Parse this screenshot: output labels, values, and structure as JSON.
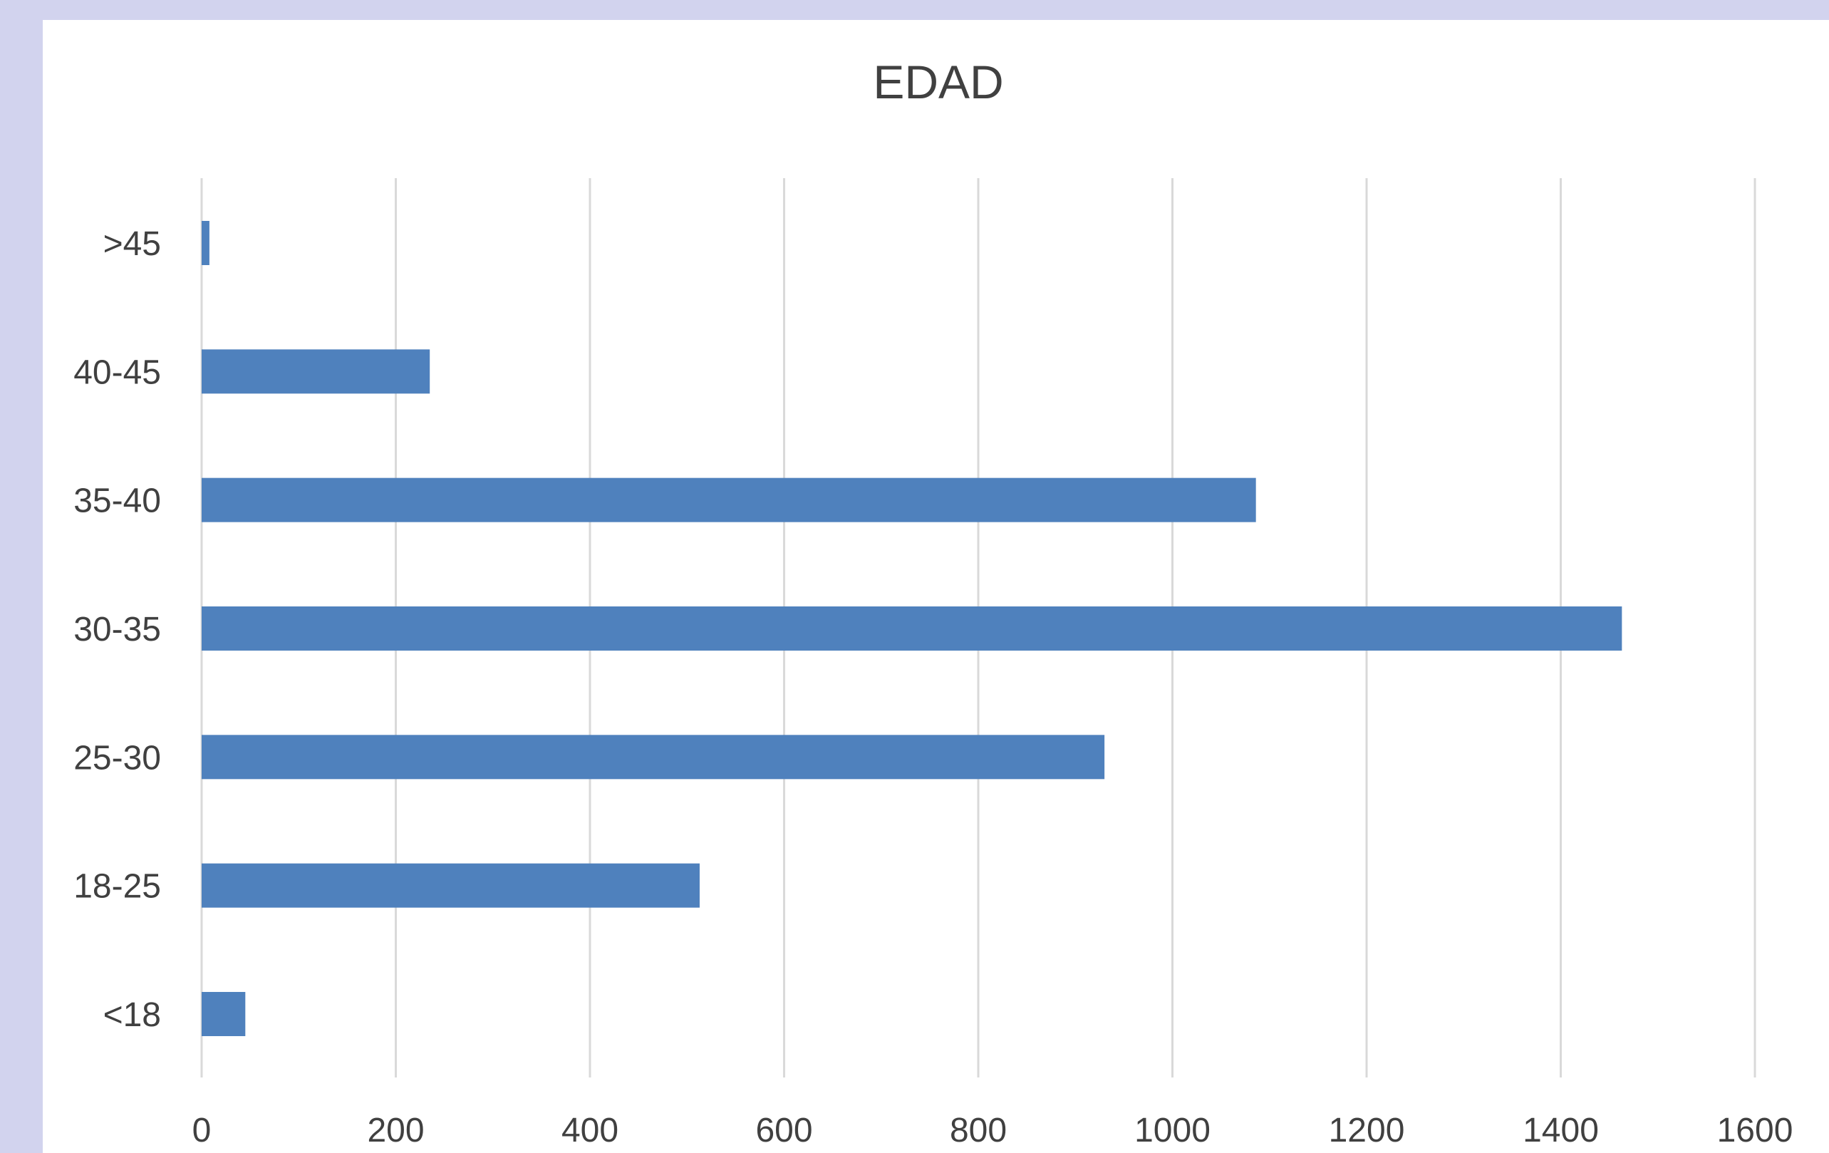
{
  "chart_data": {
    "type": "bar",
    "orientation": "horizontal",
    "title": "EDAD",
    "xlabel": "",
    "ylabel": "",
    "categories": [
      "<18",
      "18-25",
      "25-30",
      "30-35",
      "35-40",
      "40-45",
      ">45"
    ],
    "values": [
      45,
      513,
      930,
      1463,
      1086,
      235,
      8
    ],
    "xlim": [
      0,
      1600
    ],
    "xticks": [
      0,
      200,
      400,
      600,
      800,
      1000,
      1200,
      1400,
      1600
    ],
    "grid": true,
    "legend": "none",
    "colors": {
      "bar": "#4f81bd",
      "background": "#d2d3ee",
      "panel": "#ffffff",
      "gridline": "#d9d9d9",
      "text": "#404040"
    }
  }
}
